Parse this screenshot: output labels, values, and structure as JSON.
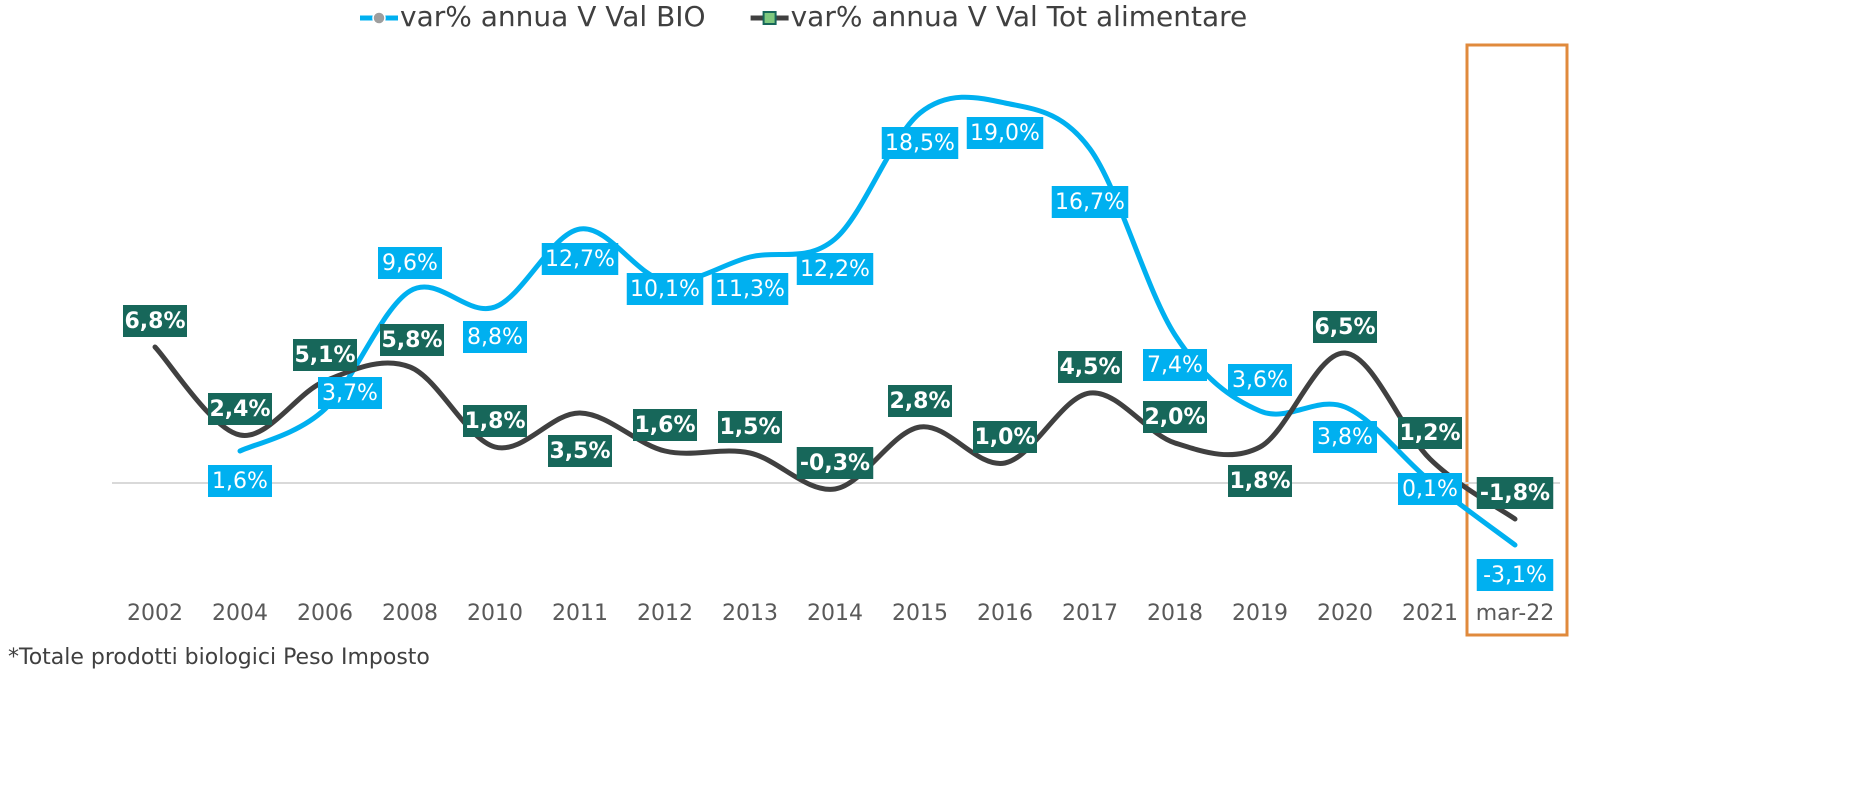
{
  "chart_data": {
    "type": "line",
    "categories": [
      "2002",
      "2004",
      "2006",
      "2008",
      "2010",
      "2011",
      "2012",
      "2013",
      "2014",
      "2015",
      "2016",
      "2017",
      "2018",
      "2019",
      "2020",
      "2021",
      "mar-22"
    ],
    "series": [
      {
        "name": "var% annua V Val BIO",
        "color": "#00b0f0",
        "values": [
          null,
          1.6,
          3.7,
          9.6,
          8.8,
          12.7,
          10.1,
          11.3,
          12.2,
          18.5,
          19.0,
          16.7,
          7.4,
          3.6,
          3.8,
          0.1,
          -3.1
        ],
        "value_labels": [
          null,
          "1,6%",
          "3,7%",
          "9,6%",
          "8,8%",
          "12,7%",
          "10,1%",
          "11,3%",
          "12,2%",
          "18,5%",
          "19,0%",
          "16,7%",
          "7,4%",
          "3,6%",
          "3,8%",
          "0,1%",
          "-3,1%"
        ]
      },
      {
        "name": "var% annua V Val Tot alimentare",
        "color": "#404040",
        "label_color": "#17675a",
        "values": [
          6.8,
          2.4,
          5.1,
          5.8,
          1.8,
          3.5,
          1.6,
          1.5,
          -0.3,
          2.8,
          1.0,
          4.5,
          2.0,
          1.8,
          6.5,
          1.2,
          -1.8
        ],
        "value_labels": [
          "6,8%",
          "2,4%",
          "5,1%",
          "5,8%",
          "1,8%",
          "3,5%",
          "1,6%",
          "1,5%",
          "-0,3%",
          "2,8%",
          "1,0%",
          "4,5%",
          "2,0%",
          "1,8%",
          "6,5%",
          "1,2%",
          "-1,8%"
        ]
      }
    ],
    "ylim": [
      -5,
      22
    ],
    "legend": "top",
    "note": "*Totale prodotti biologici Peso Imposto"
  }
}
